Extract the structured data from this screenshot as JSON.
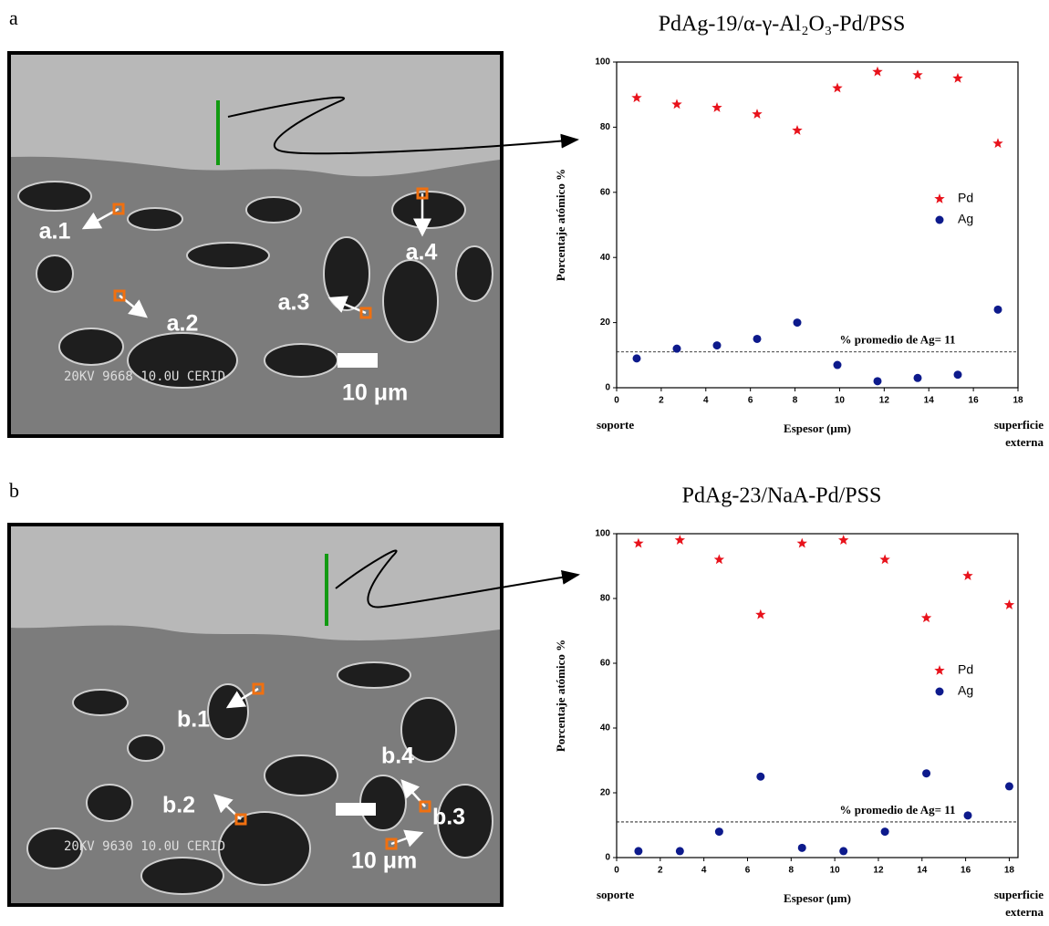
{
  "panels": [
    {
      "letter": "a",
      "markers": [
        "a.1",
        "a.2",
        "a.3",
        "a.4"
      ],
      "scale_bar": "10 μm",
      "overlay": "20KV    9668   10.0U CERID"
    },
    {
      "letter": "b",
      "markers": [
        "b.1",
        "b.2",
        "b.3",
        "b.4"
      ],
      "scale_bar": "10 μm",
      "overlay": "20KV    9630   10.0U CERID"
    }
  ],
  "chart_data": [
    {
      "type": "scatter",
      "title": "PdAg-19/α-γ-Al₂O₃-Pd/PSS",
      "x_label": "Espesor (μm)",
      "y_label": "Porcentaje atómico %",
      "x_start_label": "soporte",
      "x_end_label": [
        "superficie",
        "externa"
      ],
      "x": [
        0.9,
        2.7,
        4.5,
        6.3,
        8.1,
        9.9,
        11.7,
        13.5,
        15.3,
        17.1
      ],
      "series": [
        {
          "name": "Pd",
          "color": "#e8121b",
          "marker": "star",
          "values": [
            89,
            87,
            86,
            84,
            79,
            92,
            97,
            96,
            95,
            75
          ]
        },
        {
          "name": "Ag",
          "color": "#0d1a8c",
          "marker": "circle",
          "values": [
            9,
            12,
            13,
            15,
            20,
            7,
            2,
            3,
            4,
            24
          ]
        }
      ],
      "hline": 11,
      "annotation": "% promedio de Ag= 11",
      "xlim": [
        0,
        18
      ],
      "xticks": [
        0,
        2,
        4,
        6,
        8,
        10,
        12,
        14,
        16,
        18
      ],
      "ylim": [
        0,
        100
      ],
      "yticks": [
        0,
        20,
        40,
        60,
        80,
        100
      ],
      "legend": "right"
    },
    {
      "type": "scatter",
      "title": "PdAg-23/NaA-Pd/PSS",
      "x_label": "Espesor (μm)",
      "y_label": "Porcentaje atómico %",
      "x_start_label": "soporte",
      "x_end_label": [
        "superficie",
        "externa"
      ],
      "x": [
        1.0,
        2.9,
        4.7,
        6.6,
        8.5,
        10.4,
        12.3,
        14.2,
        16.1,
        18.0
      ],
      "series": [
        {
          "name": "Pd",
          "color": "#e8121b",
          "marker": "star",
          "values": [
            97,
            98,
            92,
            75,
            97,
            98,
            92,
            74,
            87,
            78
          ]
        },
        {
          "name": "Ag",
          "color": "#0d1a8c",
          "marker": "circle",
          "values": [
            2,
            2,
            8,
            25,
            3,
            2,
            8,
            26,
            13,
            22
          ]
        }
      ],
      "hline": 11,
      "annotation": "% promedio de Ag= 11",
      "xlim": [
        0,
        18.4
      ],
      "xticks": [
        0,
        2,
        4,
        6,
        8,
        10,
        12,
        14,
        16,
        18
      ],
      "ylim": [
        0,
        100
      ],
      "yticks": [
        0,
        20,
        40,
        60,
        80,
        100
      ],
      "legend": "right"
    }
  ]
}
